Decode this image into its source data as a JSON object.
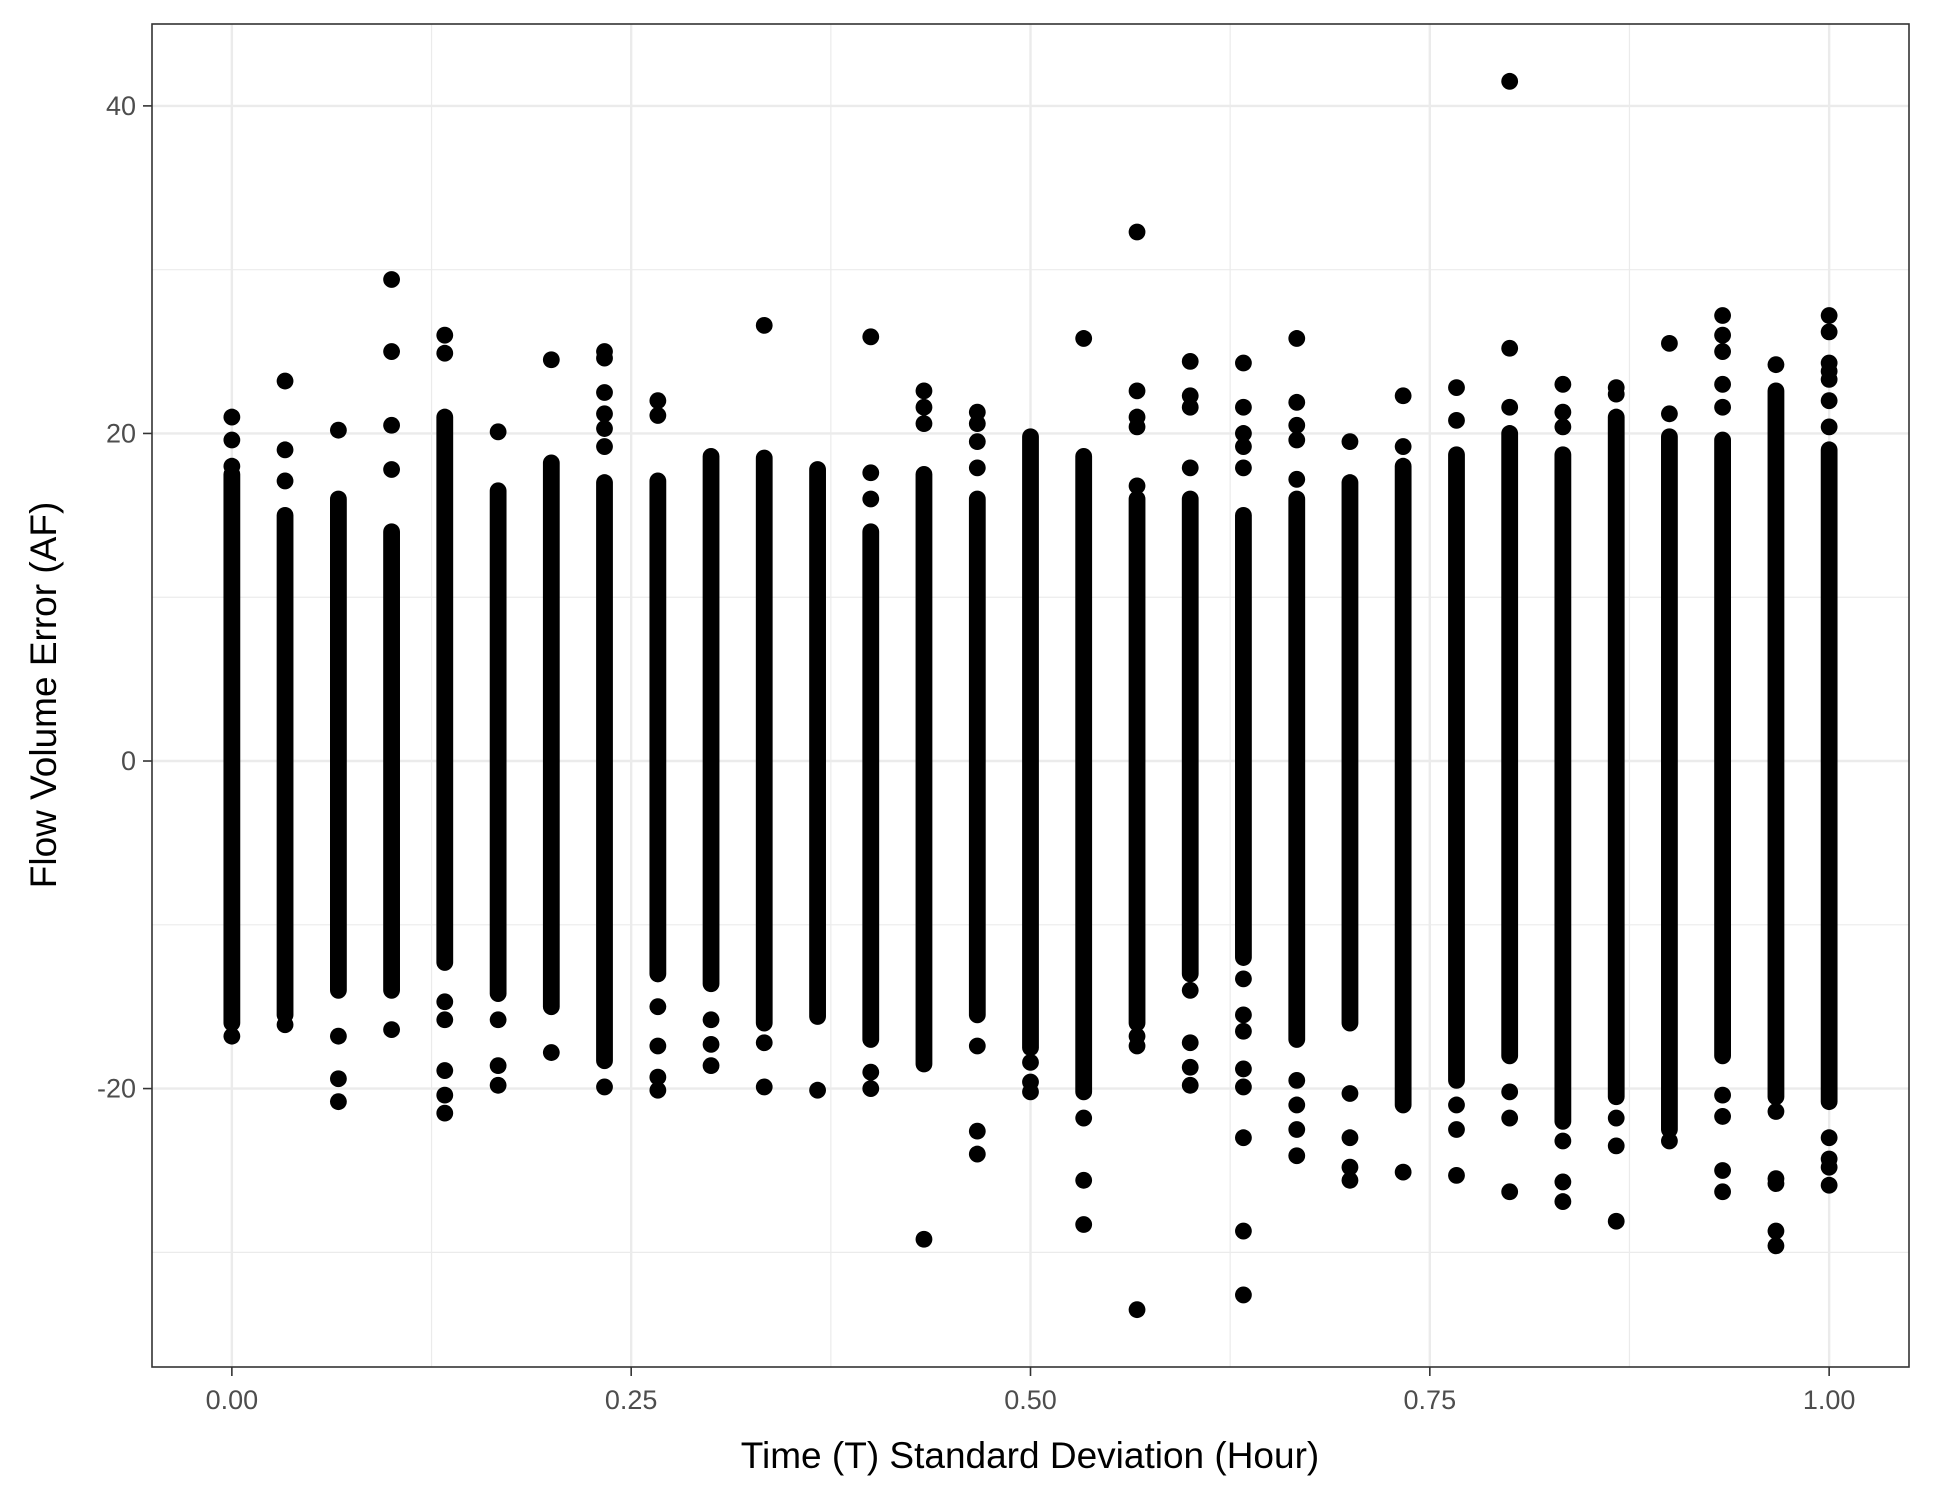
{
  "chart_data": {
    "type": "scatter",
    "title": "",
    "xlabel": "Time (T) Standard Deviation (Hour)",
    "ylabel": "Flow Volume Error (AF)",
    "xlim": [
      -0.05,
      1.05
    ],
    "ylim": [
      -37,
      45
    ],
    "x_ticks": [
      0,
      0.25,
      0.5,
      0.75,
      1
    ],
    "x_tick_labels": [
      "0.00",
      "0.25",
      "0.50",
      "0.75",
      "1.00"
    ],
    "y_ticks": [
      -20,
      0,
      20,
      40
    ],
    "y_tick_labels": [
      "-20",
      "0",
      "20",
      "40"
    ],
    "grid": true,
    "legend": "none",
    "point_color": "#000000",
    "columns": [
      {
        "x": 0.0,
        "dense": [
          -16,
          17.5
        ],
        "outliers": [
          21,
          19.6,
          18,
          -16.8
        ]
      },
      {
        "x": 0.0333,
        "dense": [
          -15.5,
          15
        ],
        "outliers": [
          23.2,
          19,
          17.1,
          -16.1
        ]
      },
      {
        "x": 0.0667,
        "dense": [
          -14,
          16
        ],
        "outliers": [
          20.2,
          -16.8,
          -19.4,
          -20.8
        ]
      },
      {
        "x": 0.1,
        "dense": [
          -14,
          14
        ],
        "outliers": [
          29.4,
          25,
          20.5,
          17.8,
          -16.4
        ]
      },
      {
        "x": 0.1333,
        "dense": [
          -12.3,
          21
        ],
        "outliers": [
          26,
          24.9,
          -14.7,
          -15.8,
          -18.9,
          -20.4,
          -21.5
        ]
      },
      {
        "x": 0.1667,
        "dense": [
          -14.2,
          16.5
        ],
        "outliers": [
          20.1,
          -15.8,
          -18.6,
          -19.8
        ]
      },
      {
        "x": 0.2,
        "dense": [
          -15,
          18.2
        ],
        "outliers": [
          24.5,
          -17.8
        ]
      },
      {
        "x": 0.2333,
        "dense": [
          -18.3,
          17
        ],
        "outliers": [
          25,
          24.6,
          22.5,
          21.2,
          20.3,
          19.2,
          -19.9
        ]
      },
      {
        "x": 0.2667,
        "dense": [
          -13,
          17.1
        ],
        "outliers": [
          22,
          21.1,
          -15,
          -17.4,
          -19.3,
          -20.1
        ]
      },
      {
        "x": 0.3,
        "dense": [
          -13.6,
          18.6
        ],
        "outliers": [
          -15.8,
          -17.3,
          -18.6
        ]
      },
      {
        "x": 0.3333,
        "dense": [
          -16,
          18.5
        ],
        "outliers": [
          26.6,
          -17.2,
          -19.9
        ]
      },
      {
        "x": 0.3667,
        "dense": [
          -15.6,
          17.8
        ],
        "outliers": [
          -20.1
        ]
      },
      {
        "x": 0.4,
        "dense": [
          -17,
          14
        ],
        "outliers": [
          25.9,
          17.6,
          16,
          -19,
          -20
        ]
      },
      {
        "x": 0.4333,
        "dense": [
          -18.5,
          17.5
        ],
        "outliers": [
          22.6,
          21.6,
          20.6,
          -29.2
        ]
      },
      {
        "x": 0.4667,
        "dense": [
          -15.5,
          16
        ],
        "outliers": [
          21.3,
          20.6,
          19.5,
          17.9,
          -17.4,
          -22.6,
          -24
        ]
      },
      {
        "x": 0.5,
        "dense": [
          -17.5,
          19.8
        ],
        "outliers": [
          -18.4,
          -19.6,
          -20.2
        ]
      },
      {
        "x": 0.5333,
        "dense": [
          -20.2,
          18.6
        ],
        "outliers": [
          25.8,
          -21.8,
          -25.6,
          -28.3
        ]
      },
      {
        "x": 0.5667,
        "dense": [
          -16,
          16
        ],
        "outliers": [
          32.3,
          22.6,
          21,
          20.4,
          16.8,
          -16.8,
          -17.4,
          -33.5
        ]
      },
      {
        "x": 0.6,
        "dense": [
          -13,
          16
        ],
        "outliers": [
          24.4,
          22.3,
          21.6,
          17.9,
          -14,
          -17.2,
          -18.7,
          -19.8
        ]
      },
      {
        "x": 0.6333,
        "dense": [
          -12,
          15
        ],
        "outliers": [
          24.3,
          21.6,
          20,
          19.2,
          17.9,
          -13.3,
          -15.5,
          -16.5,
          -18.8,
          -19.9,
          -23,
          -28.7,
          -32.6
        ]
      },
      {
        "x": 0.6667,
        "dense": [
          -17,
          16
        ],
        "outliers": [
          25.8,
          21.9,
          20.5,
          19.6,
          17.2,
          -19.5,
          -21,
          -22.5,
          -24.1
        ]
      },
      {
        "x": 0.7,
        "dense": [
          -16,
          17
        ],
        "outliers": [
          19.5,
          -20.3,
          -23,
          -24.8,
          -25.6
        ]
      },
      {
        "x": 0.7333,
        "dense": [
          -21,
          18
        ],
        "outliers": [
          22.3,
          19.2,
          -25.1
        ]
      },
      {
        "x": 0.7667,
        "dense": [
          -19.5,
          18.7
        ],
        "outliers": [
          22.8,
          20.8,
          -21,
          -22.5,
          -25.3
        ]
      },
      {
        "x": 0.8,
        "dense": [
          -18,
          20
        ],
        "outliers": [
          41.5,
          25.2,
          21.6,
          -20.2,
          -21.8,
          -26.3
        ]
      },
      {
        "x": 0.8333,
        "dense": [
          -22,
          18.7
        ],
        "outliers": [
          23,
          21.3,
          20.4,
          -23.2,
          -25.7,
          -26.9
        ]
      },
      {
        "x": 0.8667,
        "dense": [
          -20.5,
          21
        ],
        "outliers": [
          22.8,
          22.4,
          -21.8,
          -23.5,
          -28.1
        ]
      },
      {
        "x": 0.9,
        "dense": [
          -22.5,
          19.8
        ],
        "outliers": [
          25.5,
          21.2,
          -23.2
        ]
      },
      {
        "x": 0.9333,
        "dense": [
          -18,
          19.6
        ],
        "outliers": [
          27.2,
          26,
          25,
          23,
          21.6,
          -20.4,
          -21.7,
          -25,
          -26.3
        ]
      },
      {
        "x": 0.9667,
        "dense": [
          -20.5,
          22.6
        ],
        "outliers": [
          24.2,
          -21.4,
          -25.5,
          -25.8,
          -28.7,
          -29.6
        ]
      },
      {
        "x": 1.0,
        "dense": [
          -20.8,
          19
        ],
        "outliers": [
          27.2,
          26.2,
          24.3,
          23.8,
          23.3,
          22,
          20.4,
          -23,
          -24.3,
          -24.8,
          -25.9
        ]
      }
    ]
  }
}
